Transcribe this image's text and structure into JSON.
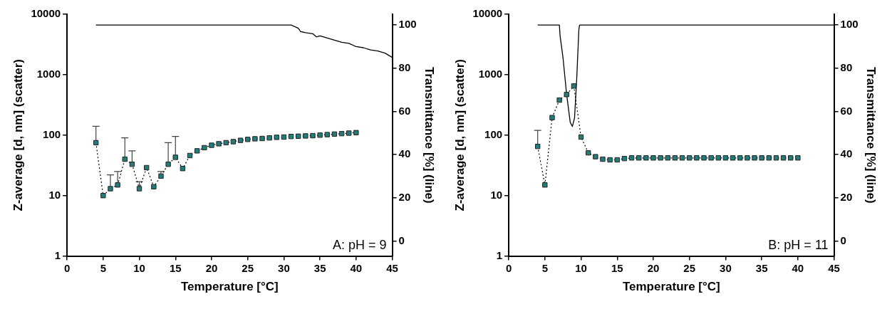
{
  "chart_data": [
    {
      "type": "line",
      "xlabel": "Temperature [°C]",
      "ylabel": "Z-average [d, nm] (scatter)",
      "y2label": "Transmittance [%] (line)",
      "annotations": [
        "A: pH = 9"
      ],
      "log": "y",
      "grid": false,
      "legend": false,
      "xlim": [
        0,
        45
      ],
      "xticks": [
        0,
        5,
        10,
        15,
        20,
        25,
        30,
        35,
        40,
        45
      ],
      "ylim": [
        1,
        10000
      ],
      "yticks": [
        1,
        10,
        100,
        1000,
        10000
      ],
      "y2lim": [
        -7,
        105
      ],
      "y2ticks": [
        0,
        20,
        40,
        60,
        80,
        100
      ],
      "series": [
        {
          "marker": "square",
          "line_style": "dotted",
          "color": "#217c7a",
          "x": [
            4,
            5,
            6,
            7,
            8,
            9,
            10,
            11,
            12,
            13,
            14,
            15,
            16,
            17,
            18,
            19,
            20,
            21,
            22,
            23,
            24,
            25,
            26,
            27,
            28,
            29,
            30,
            31,
            32,
            33,
            34,
            35,
            36,
            37,
            38,
            39,
            40
          ],
          "values": [
            75,
            10,
            13,
            15,
            40,
            33,
            13,
            29,
            14,
            21,
            33,
            43,
            28,
            46,
            55,
            62,
            68,
            72,
            75,
            78,
            82,
            85,
            87,
            88,
            90,
            92,
            93,
            95,
            96,
            97,
            98,
            100,
            102,
            104,
            106,
            108,
            110
          ],
          "errors": [
            [
              75,
              140
            ],
            null,
            [
              13,
              22
            ],
            [
              15,
              25
            ],
            [
              40,
              90
            ],
            [
              33,
              55
            ],
            [
              13,
              17
            ],
            null,
            null,
            [
              21,
              25
            ],
            [
              33,
              75
            ],
            [
              43,
              95
            ],
            null,
            null,
            null,
            null,
            null,
            null,
            null,
            null,
            null,
            null,
            null,
            null,
            null,
            null,
            null,
            null,
            null,
            null,
            null,
            null,
            null,
            null,
            null,
            null,
            null
          ]
        },
        {
          "axis": "y2",
          "marker": "none",
          "line_style": "solid",
          "color": "#000000",
          "x": [
            4,
            31,
            32,
            32.3,
            33,
            34,
            34.5,
            35,
            36,
            37,
            38,
            39,
            40,
            41,
            42,
            43,
            44,
            45
          ],
          "values": [
            100,
            100,
            98.5,
            97,
            96.5,
            96,
            94.5,
            95,
            94,
            93,
            92,
            91.5,
            90,
            89.5,
            88.5,
            88,
            87,
            85
          ]
        }
      ]
    },
    {
      "type": "line",
      "xlabel": "Temperature [°C]",
      "ylabel": "Z-average [d, nm] (scatter)",
      "y2label": "Transmittance [%] (line)",
      "annotations": [
        "B: pH = 11"
      ],
      "log": "y",
      "grid": false,
      "legend": false,
      "xlim": [
        0,
        45
      ],
      "xticks": [
        0,
        5,
        10,
        15,
        20,
        25,
        30,
        35,
        40,
        45
      ],
      "ylim": [
        1,
        10000
      ],
      "yticks": [
        1,
        10,
        100,
        1000,
        10000
      ],
      "y2lim": [
        -7,
        105
      ],
      "y2ticks": [
        0,
        20,
        40,
        60,
        80,
        100
      ],
      "series": [
        {
          "marker": "square",
          "line_style": "dotted",
          "color": "#217c7a",
          "x": [
            4,
            5,
            6,
            7,
            8,
            9,
            10,
            11,
            12,
            13,
            14,
            15,
            16,
            17,
            18,
            19,
            20,
            21,
            22,
            23,
            24,
            25,
            26,
            27,
            28,
            29,
            30,
            31,
            32,
            33,
            34,
            35,
            36,
            37,
            38,
            39,
            40
          ],
          "values": [
            65,
            15,
            195,
            380,
            470,
            650,
            93,
            51,
            44,
            40,
            39,
            39,
            41,
            42,
            42,
            42,
            42,
            42,
            42,
            42,
            42,
            42,
            42,
            42,
            42,
            42,
            42,
            42,
            42,
            42,
            42,
            42,
            42,
            42,
            42,
            42,
            42
          ],
          "errors": [
            [
              65,
              120
            ],
            null,
            null,
            null,
            null,
            null,
            null,
            null,
            null,
            null,
            null,
            null,
            null,
            null,
            null,
            null,
            null,
            null,
            null,
            null,
            null,
            null,
            null,
            null,
            null,
            null,
            null,
            null,
            null,
            null,
            null,
            null,
            null,
            null,
            null,
            null,
            null
          ]
        },
        {
          "axis": "y2",
          "marker": "none",
          "line_style": "solid",
          "color": "#000000",
          "x": [
            4,
            7,
            7.1,
            7.5,
            8,
            8.5,
            8.8,
            9.1,
            9.4,
            9.7,
            9.8,
            45
          ],
          "values": [
            100,
            100,
            95,
            85,
            68,
            55,
            53,
            57,
            75,
            98,
            100,
            100
          ]
        }
      ]
    }
  ]
}
